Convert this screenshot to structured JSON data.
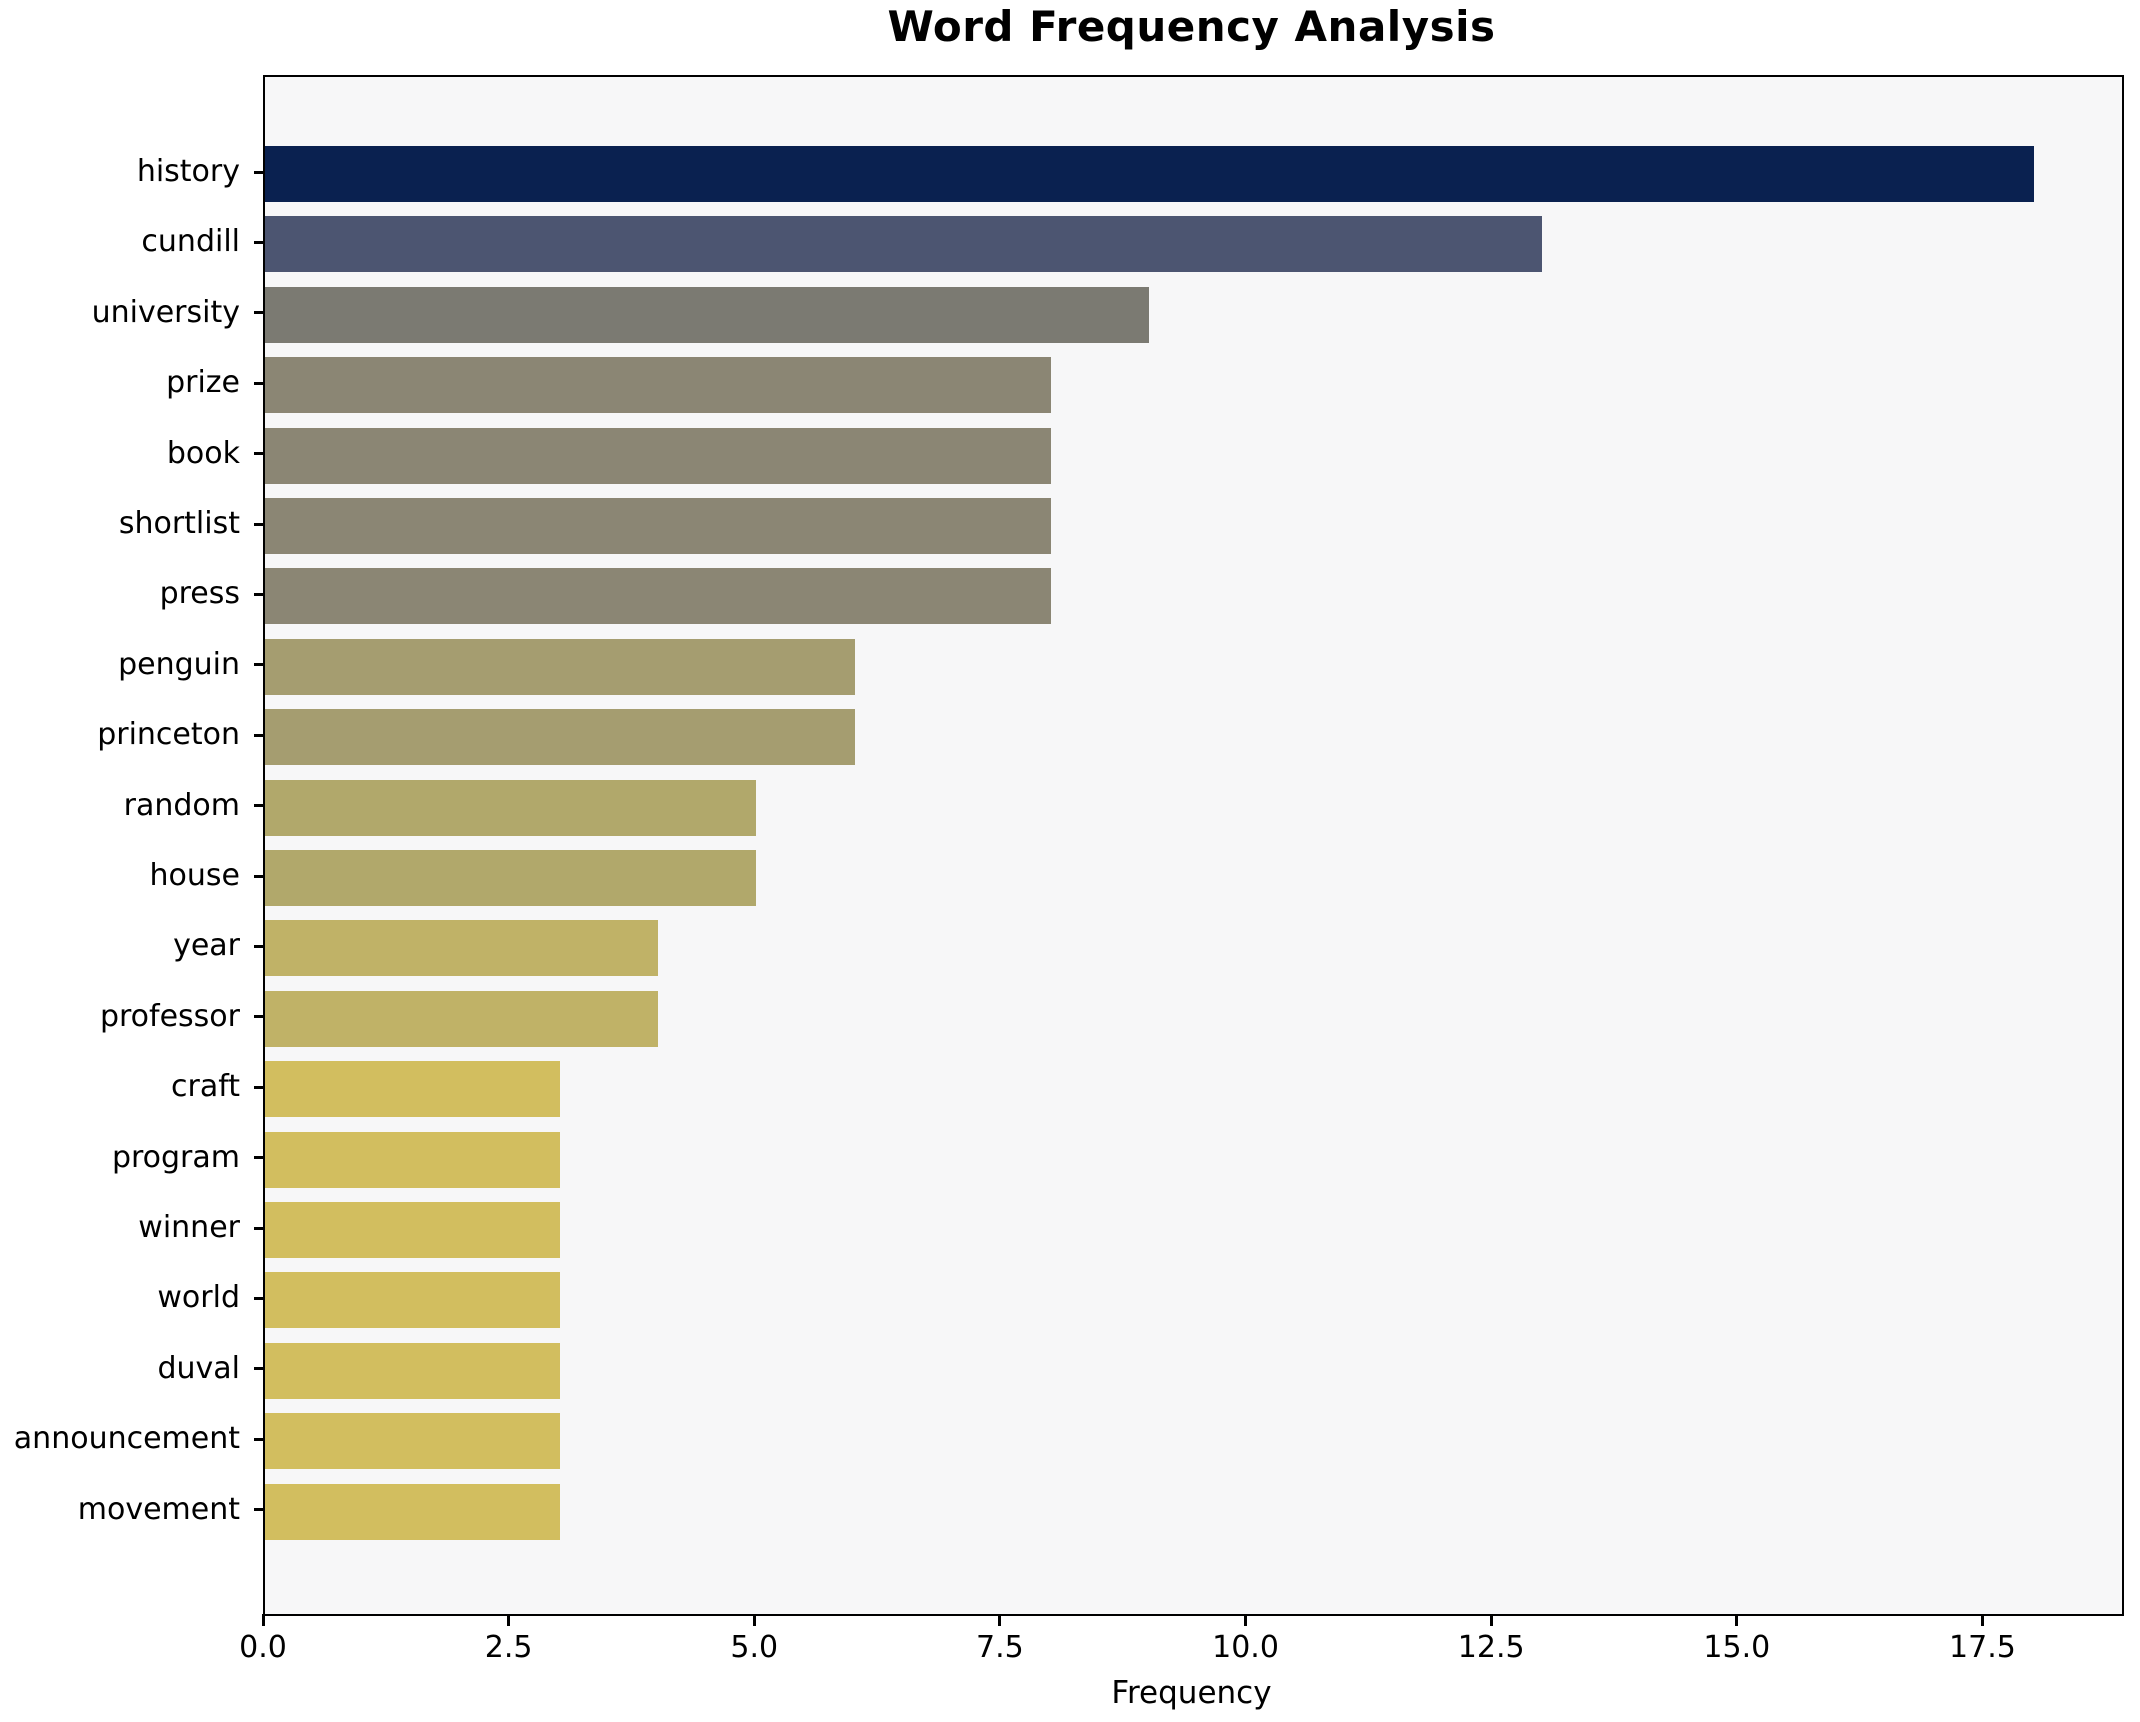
{
  "title": "Word Frequency Analysis",
  "chart_data": {
    "type": "bar",
    "orientation": "horizontal",
    "title": "Word Frequency Analysis",
    "xlabel": "Frequency",
    "ylabel": "",
    "categories": [
      "history",
      "cundill",
      "university",
      "prize",
      "book",
      "shortlist",
      "press",
      "penguin",
      "princeton",
      "random",
      "house",
      "year",
      "professor",
      "craft",
      "program",
      "winner",
      "world",
      "duval",
      "announcement",
      "movement"
    ],
    "values": [
      18,
      13,
      9,
      8,
      8,
      8,
      8,
      6,
      6,
      5,
      5,
      4,
      4,
      3,
      3,
      3,
      3,
      3,
      3,
      3
    ],
    "bar_colors": [
      "#0a2150",
      "#4c5571",
      "#7b7a72",
      "#8b8674",
      "#8b8674",
      "#8b8674",
      "#8b8674",
      "#a59d70",
      "#a59d70",
      "#b1a86b",
      "#b1a86b",
      "#c0b267",
      "#c0b267",
      "#d2be5f",
      "#d2be5f",
      "#d2be5f",
      "#d2be5f",
      "#d2be5f",
      "#d2be5f",
      "#d2be5f"
    ],
    "xlim": [
      0,
      18.9
    ],
    "x_ticks": [
      0,
      2.5,
      5,
      7.5,
      10,
      12.5,
      15,
      17.5
    ],
    "x_tick_labels": [
      "0.0",
      "2.5",
      "5.0",
      "7.5",
      "10.0",
      "12.5",
      "15.0",
      "17.5"
    ],
    "grid": false,
    "legend": null,
    "colors": {
      "figure_bg": "#ffffff",
      "plot_bg": "#f7f7f8",
      "spine": "#000000",
      "text": "#000000"
    }
  }
}
